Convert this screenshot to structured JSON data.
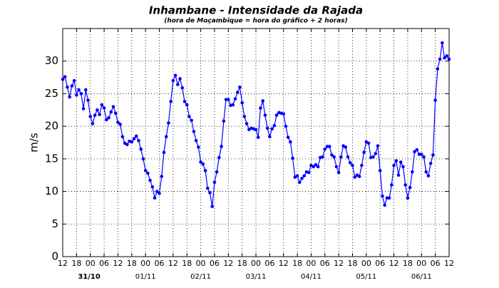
{
  "chart_data": {
    "type": "line",
    "title": "Inhambane - Intensidade da Rajada",
    "subtitle": "(hora de Moçambique = hora do gráfico + 2 horas)",
    "y_label": "m/s",
    "x": [
      0,
      1,
      2,
      3,
      4,
      5,
      6,
      7,
      8,
      9,
      10,
      11,
      12,
      13,
      14,
      15,
      16,
      17,
      18,
      19,
      20,
      21,
      22,
      23,
      24,
      25,
      26,
      27,
      28,
      29,
      30,
      31,
      32,
      33,
      34,
      35,
      36,
      37,
      38,
      39,
      40,
      41,
      42,
      43,
      44,
      45,
      46,
      47,
      48,
      49,
      50,
      51,
      52,
      53,
      54,
      55,
      56,
      57,
      58,
      59,
      60,
      61,
      62,
      63,
      64,
      65,
      66,
      67,
      68,
      69,
      70,
      71,
      72,
      73,
      74,
      75,
      76,
      77,
      78,
      79,
      80,
      81,
      82,
      83,
      84,
      85,
      86,
      87,
      88,
      89,
      90,
      91,
      92,
      93,
      94,
      95,
      96,
      97,
      98,
      99,
      100,
      101,
      102,
      103,
      104,
      105,
      106,
      107,
      108,
      109,
      110,
      111,
      112,
      113,
      114,
      115,
      116,
      117,
      118,
      119,
      120,
      121,
      122,
      123,
      124,
      125,
      126,
      127,
      128,
      129,
      130,
      131,
      132,
      133,
      134,
      135,
      136,
      137,
      138,
      139,
      140,
      141,
      142,
      143,
      144,
      145,
      146,
      147,
      148,
      149,
      150,
      151,
      152,
      153,
      154,
      155,
      156,
      157,
      158,
      159,
      160,
      161,
      162,
      163,
      164,
      165,
      166,
      167,
      168
    ],
    "series": [
      {
        "name": "Rajada",
        "color": "#0000ff",
        "values": [
          27.2,
          27.6,
          26,
          24.5,
          26.2,
          27,
          24.8,
          25.6,
          25,
          22.7,
          25.6,
          24,
          21.5,
          20.4,
          21.7,
          22.5,
          21.8,
          23.3,
          22.8,
          21,
          21.3,
          22.2,
          23,
          22,
          20.6,
          20.3,
          18.4,
          17.4,
          17.2,
          17.7,
          17.6,
          18.1,
          18.5,
          17.8,
          16.5,
          15,
          13.2,
          12.8,
          11.7,
          10.7,
          9,
          10,
          9.7,
          12.3,
          16,
          18.4,
          20.5,
          23.8,
          27,
          27.8,
          26.4,
          27.3,
          25.9,
          23.8,
          23.3,
          21.5,
          20.9,
          19.2,
          17.8,
          16.8,
          14.5,
          14.2,
          13.2,
          10.5,
          9.8,
          7.7,
          11.4,
          13,
          15.2,
          16.9,
          20.8,
          24.1,
          24.1,
          23.2,
          23.3,
          24.2,
          25.2,
          26,
          23.6,
          21.5,
          20.4,
          19.5,
          19.7,
          19.6,
          19.5,
          18.3,
          22.8,
          23.9,
          21.7,
          19.7,
          18.4,
          19.6,
          20.1,
          21.7,
          22.1,
          22,
          21.9,
          20,
          18.3,
          17.6,
          15.1,
          12.2,
          12.4,
          11.4,
          12,
          12.4,
          13,
          12.9,
          14,
          13.8,
          14.1,
          13.8,
          15.2,
          15.3,
          16.5,
          16.9,
          16.9,
          15.6,
          15.3,
          13.8,
          12.9,
          15.3,
          17,
          16.8,
          15.3,
          14.4,
          14,
          12.2,
          12.5,
          12.3,
          14,
          16,
          17.6,
          17.4,
          15.2,
          15.3,
          15.8,
          17,
          13.2,
          9.3,
          7.9,
          9,
          9,
          11,
          14,
          14.7,
          12.5,
          14.5,
          13.8,
          11,
          9,
          10.6,
          13,
          16.1,
          16.4,
          15.7,
          15.7,
          15.3,
          13,
          12.4,
          14.3,
          15.6,
          24,
          28.8,
          30.3,
          32.8,
          30.5,
          30.8,
          30.3
        ]
      }
    ],
    "xlim": [
      0,
      168
    ],
    "xticks": [
      {
        "value": 0,
        "label": "12"
      },
      {
        "value": 6,
        "label": "18"
      },
      {
        "value": 12,
        "label": "00"
      },
      {
        "value": 18,
        "label": "06"
      },
      {
        "value": 24,
        "label": "12"
      },
      {
        "value": 30,
        "label": "18"
      },
      {
        "value": 36,
        "label": "00"
      },
      {
        "value": 42,
        "label": "06"
      },
      {
        "value": 48,
        "label": "12"
      },
      {
        "value": 54,
        "label": "18"
      },
      {
        "value": 60,
        "label": "00"
      },
      {
        "value": 66,
        "label": "06"
      },
      {
        "value": 72,
        "label": "12"
      },
      {
        "value": 78,
        "label": "18"
      },
      {
        "value": 84,
        "label": "00"
      },
      {
        "value": 90,
        "label": "06"
      },
      {
        "value": 96,
        "label": "12"
      },
      {
        "value": 102,
        "label": "18"
      },
      {
        "value": 108,
        "label": "00"
      },
      {
        "value": 114,
        "label": "06"
      },
      {
        "value": 120,
        "label": "12"
      },
      {
        "value": 126,
        "label": "18"
      },
      {
        "value": 132,
        "label": "00"
      },
      {
        "value": 138,
        "label": "06"
      },
      {
        "value": 144,
        "label": "12"
      },
      {
        "value": 150,
        "label": "18"
      },
      {
        "value": 156,
        "label": "00"
      },
      {
        "value": 162,
        "label": "06"
      },
      {
        "value": 168,
        "label": "12"
      }
    ],
    "date_labels": [
      {
        "value": 11.5,
        "label": "31/10"
      },
      {
        "value": 36,
        "label": "01/11"
      },
      {
        "value": 60,
        "label": "02/11"
      },
      {
        "value": 84,
        "label": "03/11"
      },
      {
        "value": 108,
        "label": "04/11"
      },
      {
        "value": 132,
        "label": "05/11"
      },
      {
        "value": 156,
        "label": "06/11"
      }
    ],
    "ylim": [
      0,
      35
    ],
    "yticks": [
      0,
      5,
      10,
      15,
      20,
      25,
      30
    ],
    "grid": true
  }
}
